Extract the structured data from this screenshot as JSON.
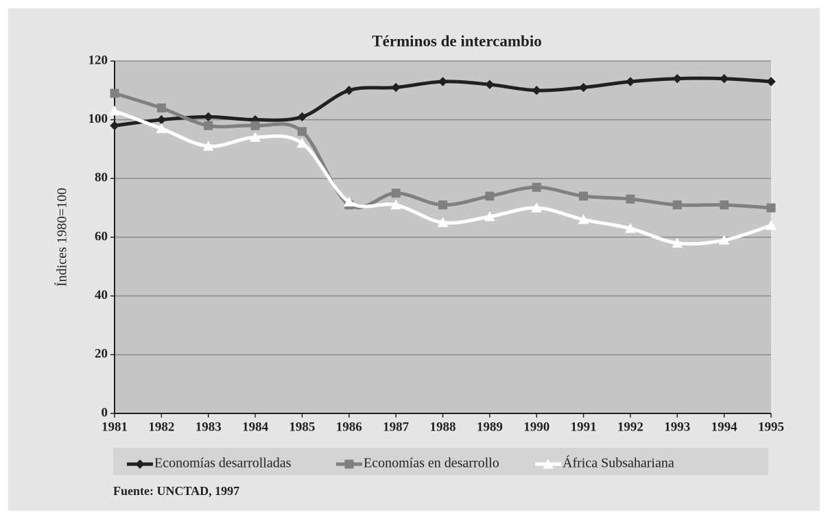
{
  "chart_data": {
    "type": "line",
    "title": "Términos de intercambio",
    "y_label": "Índices 1980=100",
    "source": "Fuente: UNCTAD, 1997",
    "categories": [
      "1981",
      "1982",
      "1983",
      "1984",
      "1985",
      "1986",
      "1987",
      "1988",
      "1989",
      "1990",
      "1991",
      "1992",
      "1993",
      "1994",
      "1995"
    ],
    "series": [
      {
        "name": "Economías desarrolladas",
        "color": "#231f20",
        "marker": "diamond",
        "values": [
          98,
          100,
          101,
          100,
          101,
          110,
          111,
          113,
          112,
          110,
          111,
          113,
          114,
          114,
          113
        ]
      },
      {
        "name": "Economías en desarrollo",
        "color": "#808080",
        "marker": "square",
        "values": [
          109,
          104,
          98,
          98,
          96,
          71,
          75,
          71,
          74,
          77,
          74,
          73,
          71,
          71,
          70
        ]
      },
      {
        "name": "África Subsahariana",
        "color": "#ffffff",
        "marker": "triangle",
        "values": [
          103,
          97,
          91,
          94,
          92,
          72,
          71,
          65,
          67,
          70,
          66,
          63,
          58,
          59,
          64
        ]
      }
    ],
    "ylim": [
      0,
      120
    ],
    "yticks": [
      0,
      20,
      40,
      60,
      80,
      100,
      120
    ],
    "grid": true,
    "smooth": true,
    "legend": "bottom"
  }
}
